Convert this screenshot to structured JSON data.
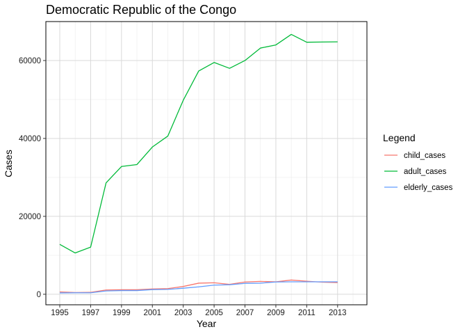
{
  "chart_data": {
    "type": "line",
    "title": "Democratic Republic of the Congo",
    "xlabel": "Year",
    "ylabel": "Cases",
    "x": [
      1995,
      1996,
      1997,
      1998,
      1999,
      2000,
      2001,
      2002,
      2003,
      2004,
      2005,
      2006,
      2007,
      2008,
      2009,
      2010,
      2011,
      2012,
      2013
    ],
    "xlim": [
      1994.1,
      2014.9
    ],
    "ylim": [
      -2700,
      70000
    ],
    "xticks": [
      1995,
      1997,
      1999,
      2001,
      2003,
      2005,
      2007,
      2009,
      2011,
      2013
    ],
    "yticks": [
      0,
      20000,
      40000,
      60000
    ],
    "grid": true,
    "legend": {
      "title": "Legend",
      "position": "right"
    },
    "series": [
      {
        "name": "child_cases",
        "color": "#F8766D",
        "values": [
          600,
          450,
          500,
          1100,
          1150,
          1150,
          1350,
          1450,
          2000,
          2850,
          2950,
          2550,
          3150,
          3300,
          3200,
          3650,
          3350,
          3100,
          3000
        ]
      },
      {
        "name": "adult_cases",
        "color": "#00BA38",
        "values": [
          12800,
          10600,
          12100,
          28600,
          32800,
          33300,
          37800,
          40600,
          49800,
          57300,
          59500,
          58000,
          60000,
          63200,
          64000,
          66700,
          64700,
          64750,
          64800
        ]
      },
      {
        "name": "elderly_cases",
        "color": "#619CFF",
        "values": [
          350,
          380,
          380,
          850,
          950,
          950,
          1200,
          1250,
          1550,
          1900,
          2350,
          2450,
          2800,
          2850,
          3150,
          3200,
          3200,
          3200,
          3200
        ]
      }
    ]
  }
}
